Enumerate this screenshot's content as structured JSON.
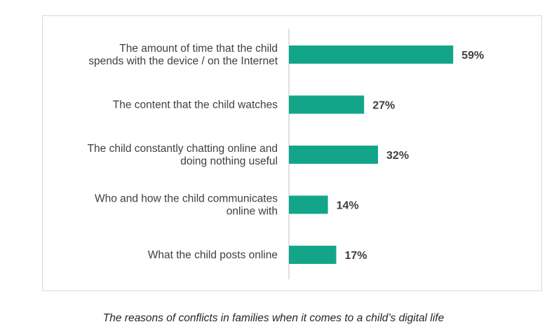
{
  "chart_data": {
    "type": "bar",
    "orientation": "horizontal",
    "categories": [
      [
        "The amount of time that the child",
        "spends with the device / on the Internet"
      ],
      [
        "The content that the child watches"
      ],
      [
        "The child constantly chatting online and",
        "doing nothing useful"
      ],
      [
        "Who and how the child communicates",
        "online with"
      ],
      [
        "What the child posts online"
      ]
    ],
    "values": [
      59,
      27,
      32,
      14,
      17
    ],
    "value_labels": [
      "59%",
      "27%",
      "32%",
      "14%",
      "17%"
    ],
    "unit": "%",
    "xlim": [
      0,
      65
    ],
    "bar_color": "#12a58a",
    "grid": false,
    "legend": "none"
  },
  "caption": "The reasons of conflicts in families when it comes to a child’s digital life"
}
